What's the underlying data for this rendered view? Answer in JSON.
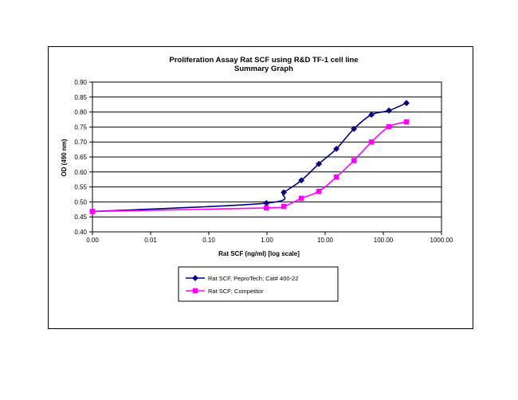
{
  "chart_data": {
    "type": "line",
    "title": "Proliferation Assay Rat SCF using R&D TF-1 cell line",
    "subtitle": "Summary Graph",
    "xlabel": "Rat SCF (ng/ml) [log scale]",
    "ylabel": "OD (490 nm)",
    "x_scale": "log",
    "x_tick_labels": [
      "0.00",
      "0.01",
      "0.10",
      "1.00",
      "10.00",
      "100.00",
      "1000.00"
    ],
    "y_tick_labels": [
      "0.40",
      "0.45",
      "0.50",
      "0.55",
      "0.60",
      "0.65",
      "0.70",
      "0.75",
      "0.80",
      "0.85",
      "0.90"
    ],
    "ylim": [
      0.4,
      0.9
    ],
    "grid": "horizontal",
    "legend_position": "bottom",
    "series": [
      {
        "name": "Rat SCF, PeproTech; Cat# 400-22",
        "color": "#000080",
        "marker": "diamond",
        "x": [
          0.001,
          0.98,
          1.95,
          3.9,
          7.8,
          15.6,
          31.25,
          62.5,
          125,
          250
        ],
        "y": [
          0.468,
          0.496,
          0.532,
          0.572,
          0.627,
          0.677,
          0.744,
          0.791,
          0.805,
          0.83
        ]
      },
      {
        "name": "Rat SCF; Competitor",
        "color": "#FF00FF",
        "marker": "square",
        "x": [
          0.001,
          0.98,
          1.95,
          3.9,
          7.8,
          15.6,
          31.25,
          62.5,
          125,
          250
        ],
        "y": [
          0.468,
          0.48,
          0.485,
          0.512,
          0.535,
          0.583,
          0.638,
          0.7,
          0.751,
          0.767
        ]
      }
    ]
  }
}
